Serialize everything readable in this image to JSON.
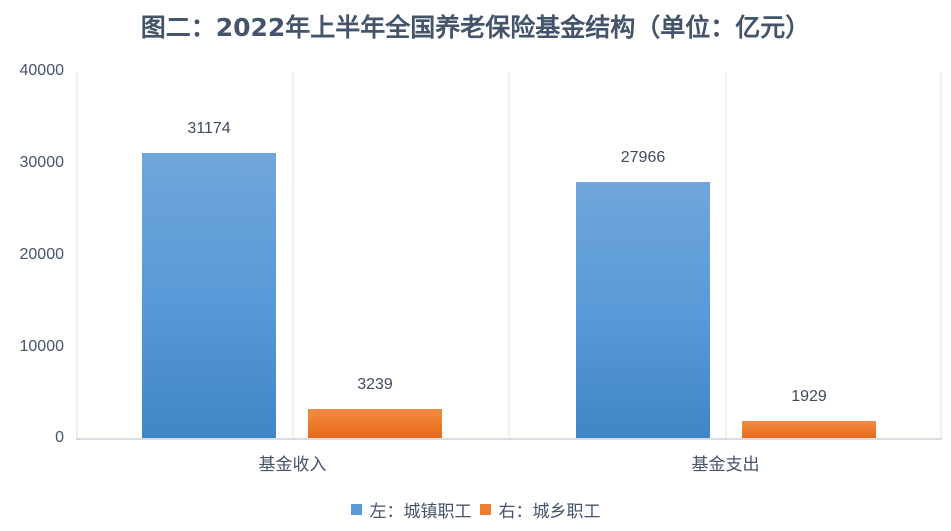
{
  "chart_data": {
    "type": "bar",
    "title": "图二：2022年上半年全国养老保险基金结构（单位：亿元）",
    "categories": [
      "基金收入",
      "基金支出"
    ],
    "series": [
      {
        "name": "左：城镇职工",
        "color": "#5b9bd5",
        "values": [
          31174,
          27966
        ]
      },
      {
        "name": "右：城乡职工",
        "color": "#ed7d31",
        "values": [
          3239,
          1929
        ]
      }
    ],
    "xlabel": "",
    "ylabel": "",
    "ylim": [
      0,
      40000
    ],
    "yticks": [
      "0",
      "10000",
      "20000",
      "30000",
      "40000"
    ],
    "grid": "vertical separators",
    "legend_position": "bottom"
  },
  "labels": {
    "title": "图二：2022年上半年全国养老保险基金结构（单位：亿元）",
    "yticks": [
      "40000",
      "30000",
      "20000",
      "10000",
      "0"
    ],
    "categories": [
      "基金收入",
      "基金支出"
    ],
    "data": {
      "s0c0": "31174",
      "s1c0": "3239",
      "s0c1": "27966",
      "s1c1": "1929"
    },
    "legend": [
      "左：城镇职工",
      "右：城乡职工"
    ]
  }
}
